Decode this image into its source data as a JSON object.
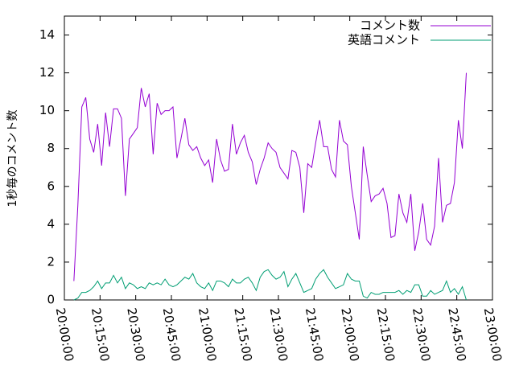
{
  "chart_data": {
    "type": "line",
    "y_label": "1秒毎のコメント数",
    "x": [
      "20:04:00",
      "20:05:40",
      "20:07:20",
      "20:09:00",
      "20:10:40",
      "20:12:20",
      "20:14:00",
      "20:15:40",
      "20:17:20",
      "20:19:00",
      "20:20:40",
      "20:22:20",
      "20:24:00",
      "20:25:40",
      "20:27:20",
      "20:29:00",
      "20:30:40",
      "20:32:20",
      "20:34:00",
      "20:35:40",
      "20:37:20",
      "20:39:00",
      "20:40:40",
      "20:42:20",
      "20:44:00",
      "20:45:40",
      "20:47:20",
      "20:49:00",
      "20:50:40",
      "20:52:20",
      "20:54:00",
      "20:55:40",
      "20:57:20",
      "20:59:00",
      "21:00:40",
      "21:02:20",
      "21:04:00",
      "21:05:40",
      "21:07:20",
      "21:09:00",
      "21:10:40",
      "21:12:20",
      "21:14:00",
      "21:15:40",
      "21:17:20",
      "21:19:00",
      "21:20:40",
      "21:22:20",
      "21:24:00",
      "21:25:40",
      "21:27:20",
      "21:29:00",
      "21:30:40",
      "21:32:20",
      "21:34:00",
      "21:35:40",
      "21:37:20",
      "21:39:00",
      "21:40:40",
      "21:42:20",
      "21:44:00",
      "21:45:40",
      "21:47:20",
      "21:49:00",
      "21:50:40",
      "21:52:20",
      "21:54:00",
      "21:55:40",
      "21:57:20",
      "21:59:00",
      "22:00:40",
      "22:02:20",
      "22:04:00",
      "22:05:40",
      "22:07:20",
      "22:09:00",
      "22:10:40",
      "22:12:20",
      "22:14:00",
      "22:15:40",
      "22:17:20",
      "22:19:00",
      "22:20:40",
      "22:22:20",
      "22:24:00",
      "22:25:40",
      "22:27:20",
      "22:29:00",
      "22:30:40",
      "22:32:20",
      "22:34:00",
      "22:35:40",
      "22:37:20",
      "22:39:00",
      "22:40:40",
      "22:42:20",
      "22:44:00",
      "22:45:40",
      "22:47:20",
      "22:49:00"
    ],
    "series": [
      {
        "name": "コメント数",
        "color": "#9400d3",
        "values": [
          1.0,
          5.0,
          10.2,
          10.7,
          8.5,
          7.8,
          9.3,
          7.1,
          9.9,
          8.1,
          10.1,
          10.1,
          9.6,
          5.5,
          8.5,
          8.8,
          9.1,
          11.2,
          10.2,
          10.9,
          7.7,
          10.4,
          9.8,
          10.0,
          10.0,
          10.2,
          7.5,
          8.5,
          9.6,
          8.2,
          7.9,
          8.1,
          7.5,
          7.1,
          7.4,
          6.2,
          8.5,
          7.4,
          6.8,
          6.9,
          9.3,
          7.7,
          8.3,
          8.7,
          7.8,
          7.3,
          6.1,
          6.9,
          7.5,
          8.3,
          8.0,
          7.8,
          7.0,
          6.7,
          6.4,
          7.9,
          7.8,
          7.0,
          4.6,
          7.2,
          7.0,
          8.3,
          9.5,
          8.1,
          8.1,
          6.9,
          6.5,
          9.5,
          8.4,
          8.2,
          6.0,
          4.6,
          3.2,
          8.1,
          6.6,
          5.2,
          5.5,
          5.6,
          5.9,
          5.1,
          3.3,
          3.4,
          5.6,
          4.6,
          4.1,
          5.6,
          2.6,
          3.6,
          5.1,
          3.2,
          2.9,
          3.9,
          7.5,
          4.1,
          5.0,
          5.1,
          6.2,
          9.5,
          8.0,
          12.0
        ]
      },
      {
        "name": "英語コメント",
        "color": "#009e73",
        "values": [
          0.0,
          0.1,
          0.4,
          0.4,
          0.5,
          0.7,
          1.0,
          0.6,
          0.9,
          0.9,
          1.3,
          0.9,
          1.2,
          0.6,
          0.9,
          0.8,
          0.6,
          0.7,
          0.6,
          0.9,
          0.8,
          0.9,
          0.8,
          1.1,
          0.8,
          0.7,
          0.8,
          1.0,
          1.2,
          1.1,
          1.4,
          0.9,
          0.7,
          0.6,
          0.9,
          0.5,
          1.0,
          1.0,
          0.9,
          0.7,
          1.1,
          0.9,
          0.9,
          1.1,
          1.2,
          0.9,
          0.5,
          1.2,
          1.5,
          1.6,
          1.3,
          1.1,
          1.2,
          1.5,
          0.7,
          1.1,
          1.4,
          0.9,
          0.4,
          0.5,
          0.6,
          1.1,
          1.4,
          1.6,
          1.2,
          0.9,
          0.6,
          0.7,
          0.8,
          1.4,
          1.1,
          1.0,
          1.0,
          0.2,
          0.1,
          0.4,
          0.3,
          0.3,
          0.4,
          0.4,
          0.4,
          0.4,
          0.5,
          0.3,
          0.5,
          0.4,
          0.8,
          0.8,
          0.2,
          0.2,
          0.5,
          0.3,
          0.4,
          0.5,
          1.0,
          0.4,
          0.6,
          0.3,
          0.7,
          0.0
        ]
      }
    ],
    "xlim": [
      "20:00:00",
      "23:00:00"
    ],
    "xticks": [
      "20:00:00",
      "20:15:00",
      "20:30:00",
      "20:45:00",
      "21:00:00",
      "21:15:00",
      "21:30:00",
      "21:45:00",
      "22:00:00",
      "22:15:00",
      "22:30:00",
      "22:45:00",
      "23:00:00"
    ],
    "ylim": [
      0,
      15
    ],
    "yticks": [
      0,
      2,
      4,
      6,
      8,
      10,
      12,
      14
    ],
    "legend": "top-right"
  }
}
